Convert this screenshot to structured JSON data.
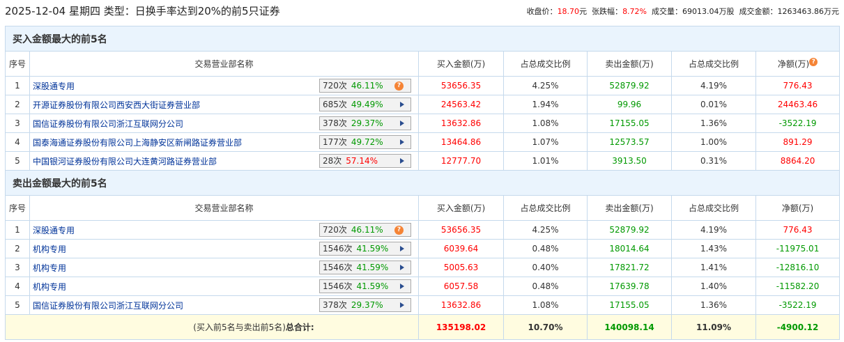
{
  "header": {
    "title": "2025-12-04 星期四 类型：日换手率达到20%的前5只证券",
    "close_label": "收盘价：",
    "close": "18.70",
    "close_unit": "元",
    "chg_label": "张跌幅：",
    "chg": "8.72%",
    "vol_label": "成交量：",
    "vol": "69013.04万股",
    "amt_label": "成交金额：",
    "amt": "1263463.86万元"
  },
  "columns": [
    "序号",
    "交易营业部名称",
    "买入金额(万)",
    "占总成交比例",
    "卖出金额(万)",
    "占总成交比例",
    "净额(万)"
  ],
  "colors": {
    "up": "#ff0000",
    "down": "#009900",
    "link": "#003399",
    "badge_arrow": "#2a4d8f",
    "help": "#f58436"
  },
  "buy": {
    "title": "买入金额最大的前5名",
    "rows": [
      {
        "no": "1",
        "name": "深股通专用",
        "times": "720次",
        "rate": "46.11%",
        "rate_color": "green",
        "icon": "help",
        "buy": "53656.35",
        "buy_pct": "4.25%",
        "sell": "52879.92",
        "sell_pct": "4.19%",
        "net": "776.43",
        "net_color": "red"
      },
      {
        "no": "2",
        "name": "开源证券股份有限公司西安西大街证券营业部",
        "times": "685次",
        "rate": "49.49%",
        "rate_color": "green",
        "icon": "arrow",
        "buy": "24563.42",
        "buy_pct": "1.94%",
        "sell": "99.96",
        "sell_pct": "0.01%",
        "net": "24463.46",
        "net_color": "red"
      },
      {
        "no": "3",
        "name": "国信证券股份有限公司浙江互联网分公司",
        "times": "378次",
        "rate": "29.37%",
        "rate_color": "green",
        "icon": "arrow",
        "buy": "13632.86",
        "buy_pct": "1.08%",
        "sell": "17155.05",
        "sell_pct": "1.36%",
        "net": "-3522.19",
        "net_color": "green"
      },
      {
        "no": "4",
        "name": "国泰海通证券股份有限公司上海静安区新闸路证券营业部",
        "times": "177次",
        "rate": "49.72%",
        "rate_color": "green",
        "icon": "arrow",
        "buy": "13464.86",
        "buy_pct": "1.07%",
        "sell": "12573.57",
        "sell_pct": "1.00%",
        "net": "891.29",
        "net_color": "red"
      },
      {
        "no": "5",
        "name": "中国银河证券股份有限公司大连黄河路证券营业部",
        "times": "28次",
        "rate": "57.14%",
        "rate_color": "red",
        "icon": "arrow",
        "buy": "12777.70",
        "buy_pct": "1.01%",
        "sell": "3913.50",
        "sell_pct": "0.31%",
        "net": "8864.20",
        "net_color": "red"
      }
    ]
  },
  "sell": {
    "title": "卖出金额最大的前5名",
    "rows": [
      {
        "no": "1",
        "name": "深股通专用",
        "times": "720次",
        "rate": "46.11%",
        "rate_color": "green",
        "icon": "help",
        "buy": "53656.35",
        "buy_pct": "4.25%",
        "sell": "52879.92",
        "sell_pct": "4.19%",
        "net": "776.43",
        "net_color": "red"
      },
      {
        "no": "2",
        "name": "机构专用",
        "times": "1546次",
        "rate": "41.59%",
        "rate_color": "green",
        "icon": "arrow",
        "buy": "6039.64",
        "buy_pct": "0.48%",
        "sell": "18014.64",
        "sell_pct": "1.43%",
        "net": "-11975.01",
        "net_color": "green"
      },
      {
        "no": "3",
        "name": "机构专用",
        "times": "1546次",
        "rate": "41.59%",
        "rate_color": "green",
        "icon": "arrow",
        "buy": "5005.63",
        "buy_pct": "0.40%",
        "sell": "17821.72",
        "sell_pct": "1.41%",
        "net": "-12816.10",
        "net_color": "green"
      },
      {
        "no": "4",
        "name": "机构专用",
        "times": "1546次",
        "rate": "41.59%",
        "rate_color": "green",
        "icon": "arrow",
        "buy": "6057.58",
        "buy_pct": "0.48%",
        "sell": "17639.78",
        "sell_pct": "1.40%",
        "net": "-11582.20",
        "net_color": "green"
      },
      {
        "no": "5",
        "name": "国信证券股份有限公司浙江互联网分公司",
        "times": "378次",
        "rate": "29.37%",
        "rate_color": "green",
        "icon": "arrow",
        "buy": "13632.86",
        "buy_pct": "1.08%",
        "sell": "17155.05",
        "sell_pct": "1.36%",
        "net": "-3522.19",
        "net_color": "green"
      }
    ]
  },
  "total": {
    "label_prefix": "(买入前5名与卖出前5名)",
    "label_bold": "总合计:",
    "buy": "135198.02",
    "buy_pct": "10.70%",
    "sell": "140098.14",
    "sell_pct": "11.09%",
    "net": "-4900.12"
  }
}
